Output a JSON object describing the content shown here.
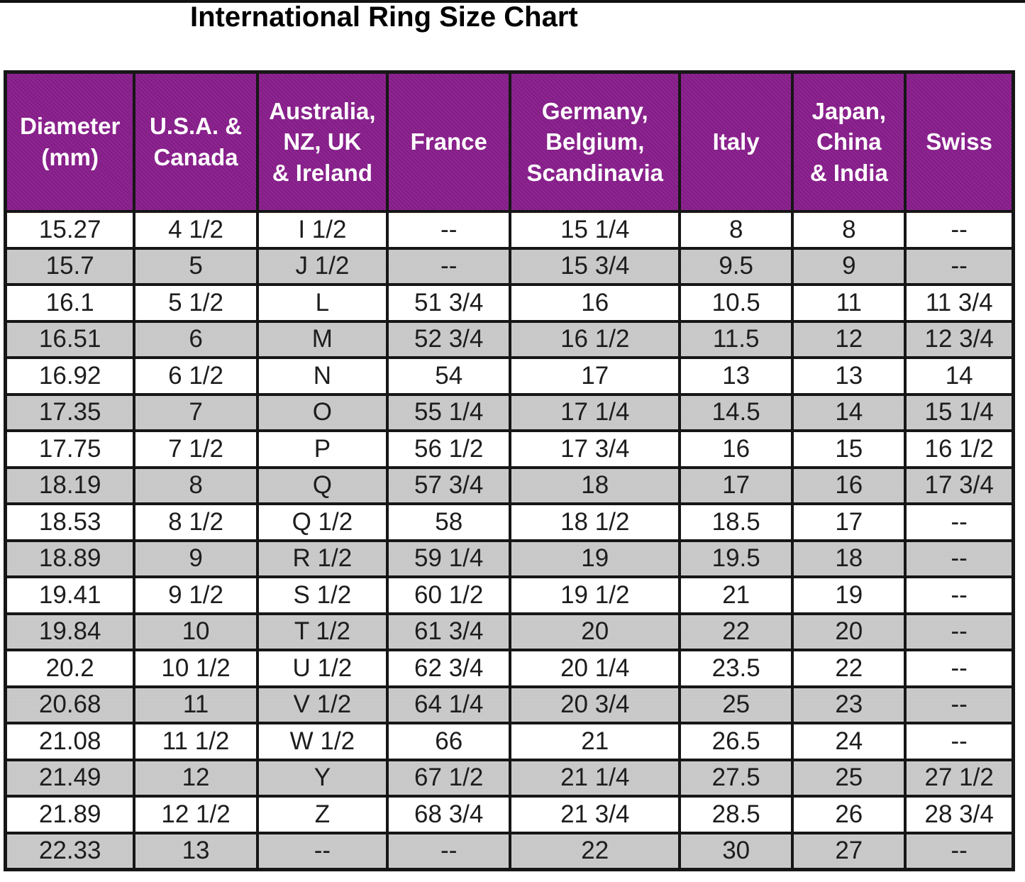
{
  "page": {
    "title": "International Ring Size Chart"
  },
  "colors": {
    "header_background": "#8a1f8d",
    "header_text": "#ffffff",
    "stripe_gray": "#cacaca",
    "row_white": "#ffffff",
    "border": "#161616",
    "cell_text": "#1d1d1d",
    "title_text": "#000000"
  },
  "chart_data": {
    "type": "table",
    "title": "International Ring Size Chart",
    "columns": [
      "Diameter\n(mm)",
      "U.S.A. &\nCanada",
      "Australia,\nNZ, UK\n& Ireland",
      "France",
      "Germany,\nBelgium,\nScandinavia",
      "Italy",
      "Japan,\nChina\n& India",
      "Swiss"
    ],
    "column_keys": [
      "diameter-mm",
      "usa-canada",
      "australia-nz-uk-ireland",
      "france",
      "germany-belgium-scandinavia",
      "italy",
      "japan-china-india",
      "swiss"
    ],
    "rows": [
      [
        "15.27",
        "4 1/2",
        "I 1/2",
        "--",
        "15 1/4",
        "8",
        "8",
        "--"
      ],
      [
        "15.7",
        "5",
        "J 1/2",
        "--",
        "15 3/4",
        "9.5",
        "9",
        "--"
      ],
      [
        "16.1",
        "5 1/2",
        "L",
        "51 3/4",
        "16",
        "10.5",
        "11",
        "11 3/4"
      ],
      [
        "16.51",
        "6",
        "M",
        "52 3/4",
        "16 1/2",
        "11.5",
        "12",
        "12 3/4"
      ],
      [
        "16.92",
        "6 1/2",
        "N",
        "54",
        "17",
        "13",
        "13",
        "14"
      ],
      [
        "17.35",
        "7",
        "O",
        "55 1/4",
        "17 1/4",
        "14.5",
        "14",
        "15 1/4"
      ],
      [
        "17.75",
        "7 1/2",
        "P",
        "56 1/2",
        "17 3/4",
        "16",
        "15",
        "16 1/2"
      ],
      [
        "18.19",
        "8",
        "Q",
        "57 3/4",
        "18",
        "17",
        "16",
        "17 3/4"
      ],
      [
        "18.53",
        "8 1/2",
        "Q 1/2",
        "58",
        "18 1/2",
        "18.5",
        "17",
        "--"
      ],
      [
        "18.89",
        "9",
        "R 1/2",
        "59 1/4",
        "19",
        "19.5",
        "18",
        "--"
      ],
      [
        "19.41",
        "9 1/2",
        "S 1/2",
        "60 1/2",
        "19 1/2",
        "21",
        "19",
        "--"
      ],
      [
        "19.84",
        "10",
        "T 1/2",
        "61 3/4",
        "20",
        "22",
        "20",
        "--"
      ],
      [
        "20.2",
        "10 1/2",
        "U 1/2",
        "62 3/4",
        "20 1/4",
        "23.5",
        "22",
        "--"
      ],
      [
        "20.68",
        "11",
        "V 1/2",
        "64 1/4",
        "20 3/4",
        "25",
        "23",
        "--"
      ],
      [
        "21.08",
        "11 1/2",
        "W 1/2",
        "66",
        "21",
        "26.5",
        "24",
        "--"
      ],
      [
        "21.49",
        "12",
        "Y",
        "67 1/2",
        "21 1/4",
        "27.5",
        "25",
        "27 1/2"
      ],
      [
        "21.89",
        "12 1/2",
        "Z",
        "68 3/4",
        "21 3/4",
        "28.5",
        "26",
        "28 3/4"
      ],
      [
        "22.33",
        "13",
        "--",
        "--",
        "22",
        "30",
        "27",
        "--"
      ]
    ]
  }
}
